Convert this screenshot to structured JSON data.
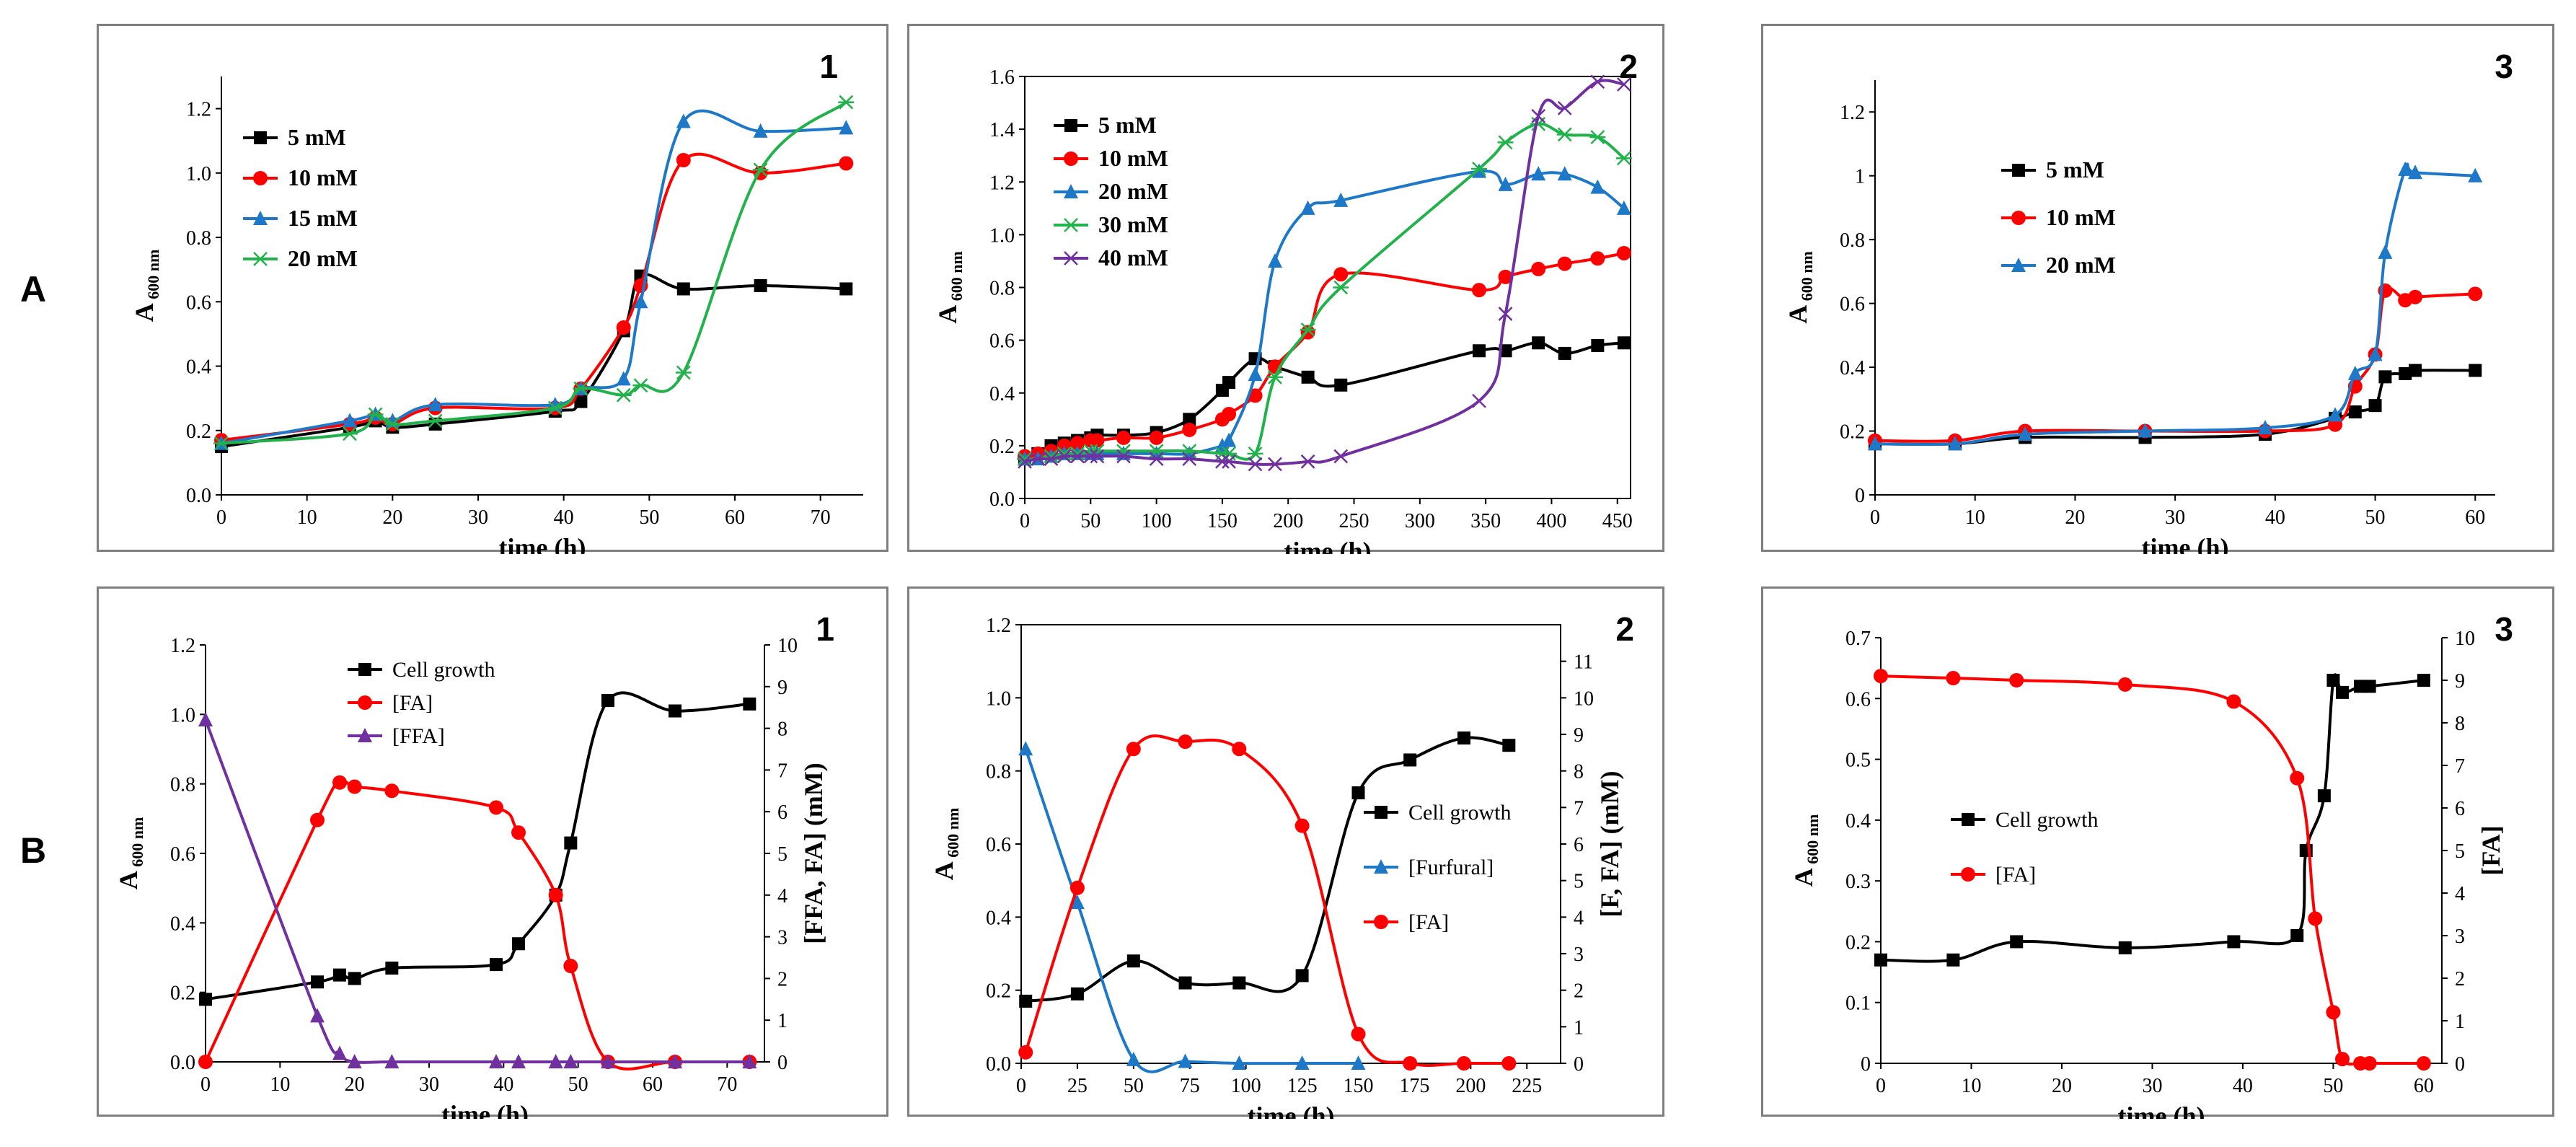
{
  "row_labels": [
    "A",
    "B"
  ],
  "chart_data": [
    {
      "id": "A1",
      "type": "line",
      "panel_number": "1",
      "xlabel": "time (h)",
      "ylabel": "A",
      "ylabel_sub": "600 nm",
      "xlim": [
        0,
        75
      ],
      "xticks": [
        0,
        10,
        20,
        30,
        40,
        50,
        60,
        70
      ],
      "ylim": [
        0,
        1.3
      ],
      "yticks": [
        0,
        0.2,
        0.4,
        0.6,
        0.8,
        1.0,
        1.2
      ],
      "ydec": 1,
      "legend": "top-left",
      "series": [
        {
          "name": "5 mM",
          "color": "#000000",
          "marker": "square",
          "x": [
            0,
            15,
            18,
            20,
            25,
            39,
            42,
            47,
            49,
            54,
            63,
            73
          ],
          "y": [
            0.15,
            0.21,
            0.23,
            0.21,
            0.22,
            0.26,
            0.29,
            0.51,
            0.68,
            0.64,
            0.65,
            0.64
          ]
        },
        {
          "name": "10 mM",
          "color": "#ff0000",
          "marker": "circle",
          "x": [
            0,
            15,
            18,
            20,
            25,
            39,
            42,
            47,
            49,
            54,
            63,
            73
          ],
          "y": [
            0.17,
            0.22,
            0.24,
            0.22,
            0.27,
            0.27,
            0.33,
            0.52,
            0.65,
            1.04,
            1.0,
            1.03
          ]
        },
        {
          "name": "15 mM",
          "color": "#1e78c8",
          "marker": "triangle",
          "x": [
            0,
            15,
            18,
            20,
            25,
            39,
            42,
            47,
            49,
            54,
            63,
            73
          ],
          "y": [
            0.16,
            0.23,
            0.25,
            0.23,
            0.28,
            0.28,
            0.33,
            0.36,
            0.6,
            1.16,
            1.13,
            1.14
          ]
        },
        {
          "name": "20 mM",
          "color": "#22b24c",
          "marker": "star",
          "x": [
            0,
            15,
            18,
            20,
            25,
            39,
            42,
            47,
            49,
            54,
            63,
            73
          ],
          "y": [
            0.16,
            0.19,
            0.25,
            0.22,
            0.23,
            0.27,
            0.33,
            0.31,
            0.34,
            0.38,
            1.01,
            1.22
          ]
        }
      ]
    },
    {
      "id": "A2",
      "type": "line",
      "panel_number": "2",
      "xlabel": "time (h)",
      "ylabel": "A",
      "ylabel_sub": "600 nm",
      "xlim": [
        0,
        460
      ],
      "xticks": [
        0,
        50,
        100,
        150,
        200,
        250,
        300,
        350,
        400,
        450
      ],
      "ylim": [
        0,
        1.6
      ],
      "yticks": [
        0,
        0.2,
        0.4,
        0.6,
        0.8,
        1.0,
        1.2,
        1.4,
        1.6
      ],
      "ydec": 1,
      "legend": "top-left",
      "series": [
        {
          "name": "5 mM",
          "color": "#000000",
          "marker": "square",
          "x": [
            0,
            10,
            20,
            30,
            40,
            50,
            55,
            75,
            100,
            125,
            150,
            155,
            175,
            190,
            215,
            240,
            345,
            365,
            390,
            410,
            435,
            455
          ],
          "y": [
            0.15,
            0.17,
            0.2,
            0.21,
            0.22,
            0.23,
            0.24,
            0.24,
            0.25,
            0.3,
            0.41,
            0.44,
            0.53,
            0.5,
            0.46,
            0.43,
            0.56,
            0.56,
            0.59,
            0.55,
            0.58,
            0.59
          ]
        },
        {
          "name": "10 mM",
          "color": "#ff0000",
          "marker": "circle",
          "x": [
            0,
            10,
            20,
            30,
            40,
            50,
            55,
            75,
            100,
            125,
            150,
            155,
            175,
            190,
            215,
            240,
            345,
            365,
            390,
            410,
            435,
            455
          ],
          "y": [
            0.16,
            0.17,
            0.18,
            0.2,
            0.21,
            0.22,
            0.22,
            0.23,
            0.23,
            0.26,
            0.3,
            0.32,
            0.39,
            0.5,
            0.63,
            0.85,
            0.79,
            0.84,
            0.87,
            0.89,
            0.91,
            0.93
          ]
        },
        {
          "name": "20 mM",
          "color": "#1e78c8",
          "marker": "triangle",
          "x": [
            0,
            10,
            20,
            30,
            40,
            50,
            55,
            75,
            100,
            125,
            150,
            155,
            175,
            190,
            215,
            240,
            345,
            365,
            390,
            410,
            435,
            455
          ],
          "y": [
            0.15,
            0.15,
            0.16,
            0.17,
            0.17,
            0.17,
            0.17,
            0.17,
            0.17,
            0.17,
            0.2,
            0.22,
            0.47,
            0.9,
            1.1,
            1.13,
            1.24,
            1.19,
            1.23,
            1.23,
            1.18,
            1.1
          ]
        },
        {
          "name": "30 mM",
          "color": "#22b24c",
          "marker": "star",
          "x": [
            0,
            10,
            20,
            30,
            40,
            50,
            55,
            75,
            100,
            125,
            150,
            155,
            175,
            190,
            215,
            240,
            345,
            365,
            390,
            410,
            435,
            455
          ],
          "y": [
            0.15,
            0.15,
            0.16,
            0.17,
            0.17,
            0.18,
            0.18,
            0.18,
            0.18,
            0.18,
            0.17,
            0.17,
            0.17,
            0.46,
            0.64,
            0.8,
            1.25,
            1.35,
            1.42,
            1.38,
            1.37,
            1.29
          ]
        },
        {
          "name": "40 mM",
          "color": "#7030a0",
          "marker": "x",
          "x": [
            0,
            10,
            20,
            30,
            40,
            50,
            55,
            75,
            100,
            125,
            150,
            155,
            175,
            190,
            215,
            240,
            345,
            365,
            390,
            410,
            435,
            455
          ],
          "y": [
            0.14,
            0.15,
            0.15,
            0.16,
            0.16,
            0.16,
            0.16,
            0.16,
            0.15,
            0.15,
            0.14,
            0.14,
            0.13,
            0.13,
            0.14,
            0.16,
            0.37,
            0.7,
            1.45,
            1.48,
            1.58,
            1.57
          ]
        }
      ]
    },
    {
      "id": "A3",
      "type": "line",
      "panel_number": "3",
      "xlabel": "time (h)",
      "ylabel": "A",
      "ylabel_sub": "600 nm",
      "xlim": [
        0,
        62
      ],
      "xticks": [
        0,
        10,
        20,
        30,
        40,
        50,
        60
      ],
      "ylim": [
        0,
        1.3
      ],
      "yticks": [
        0,
        0.2,
        0.4,
        0.6,
        0.8,
        1,
        1.2
      ],
      "ydec": -1,
      "legend": "center",
      "series": [
        {
          "name": "5 mM",
          "color": "#000000",
          "marker": "square",
          "x": [
            0,
            8,
            15,
            27,
            39,
            46,
            48,
            50,
            51,
            53,
            54,
            60
          ],
          "y": [
            0.16,
            0.16,
            0.18,
            0.18,
            0.19,
            0.24,
            0.26,
            0.28,
            0.37,
            0.38,
            0.39,
            0.39
          ]
        },
        {
          "name": "10 mM",
          "color": "#ff0000",
          "marker": "circle",
          "x": [
            0,
            8,
            15,
            27,
            39,
            46,
            48,
            50,
            51,
            53,
            54,
            60
          ],
          "y": [
            0.17,
            0.17,
            0.2,
            0.2,
            0.2,
            0.22,
            0.34,
            0.44,
            0.64,
            0.61,
            0.62,
            0.63
          ]
        },
        {
          "name": "20 mM",
          "color": "#1e78c8",
          "marker": "triangle",
          "x": [
            0,
            8,
            15,
            27,
            39,
            46,
            48,
            50,
            51,
            53,
            54,
            60
          ],
          "y": [
            0.16,
            0.16,
            0.19,
            0.2,
            0.21,
            0.25,
            0.38,
            0.44,
            0.76,
            1.02,
            1.01,
            1.0
          ]
        }
      ]
    },
    {
      "id": "B1",
      "type": "line",
      "panel_number": "1",
      "xlabel": "time (h)",
      "ylabel": "A",
      "ylabel_sub": "600 nm",
      "y2label": "[FFA, FA] (mM)",
      "xlim": [
        0,
        75
      ],
      "xticks": [
        0,
        10,
        20,
        30,
        40,
        50,
        60,
        70
      ],
      "ylim": [
        0,
        1.2
      ],
      "yticks": [
        0,
        0.2,
        0.4,
        0.6,
        0.8,
        1.0,
        1.2
      ],
      "ydec": 1,
      "y2lim": [
        0,
        10
      ],
      "y2ticks": [
        0,
        1,
        2,
        3,
        4,
        5,
        6,
        7,
        8,
        9,
        10
      ],
      "legend": "top-left",
      "series": [
        {
          "name": "Cell growth",
          "color": "#000000",
          "marker": "square",
          "axis": "left",
          "x": [
            0,
            15,
            18,
            20,
            25,
            39,
            42,
            47,
            49,
            54,
            63,
            73
          ],
          "y": [
            0.18,
            0.23,
            0.25,
            0.24,
            0.27,
            0.28,
            0.34,
            0.48,
            0.63,
            1.04,
            1.01,
            1.03
          ]
        },
        {
          "name": "[FA]",
          "color": "#ff0000",
          "marker": "circle",
          "axis": "right",
          "x": [
            0,
            15,
            18,
            20,
            25,
            39,
            42,
            47,
            49,
            54,
            63,
            73
          ],
          "y": [
            0,
            5.8,
            6.7,
            6.6,
            6.5,
            6.1,
            5.5,
            4.0,
            2.3,
            0,
            0,
            0
          ]
        },
        {
          "name": "[FFA]",
          "color": "#7030a0",
          "marker": "triangle",
          "axis": "right",
          "x": [
            0,
            15,
            18,
            20,
            25,
            39,
            42,
            47,
            49,
            54,
            63,
            73
          ],
          "y": [
            8.2,
            1.1,
            0.2,
            0,
            0,
            0,
            0,
            0,
            0,
            0,
            0,
            0
          ]
        }
      ]
    },
    {
      "id": "B2",
      "type": "line",
      "panel_number": "2",
      "xlabel": "time (h)",
      "ylabel": "A",
      "ylabel_sub": "600 nm",
      "y2label": "[F, FA] (mM)",
      "xlim": [
        0,
        240
      ],
      "xticks": [
        0,
        25,
        50,
        75,
        100,
        125,
        150,
        175,
        200,
        225
      ],
      "ylim": [
        0,
        1.2
      ],
      "yticks": [
        0,
        0.2,
        0.4,
        0.6,
        0.8,
        1.0,
        1.2
      ],
      "ydec": 1,
      "y2lim": [
        0,
        12
      ],
      "y2ticks": [
        0,
        1,
        2,
        3,
        4,
        5,
        6,
        7,
        8,
        9,
        10,
        11
      ],
      "legend": "right",
      "series": [
        {
          "name": "Cell growth",
          "color": "#000000",
          "marker": "square",
          "axis": "left",
          "x": [
            2,
            25,
            50,
            73,
            97,
            125,
            150,
            173,
            197,
            217
          ],
          "y": [
            0.17,
            0.19,
            0.28,
            0.22,
            0.22,
            0.24,
            0.74,
            0.83,
            0.89,
            0.87
          ]
        },
        {
          "name": "[Furfural]",
          "color": "#1e78c8",
          "marker": "triangle",
          "axis": "right",
          "x": [
            2,
            25,
            50,
            73,
            97,
            125,
            150
          ],
          "y": [
            8.6,
            4.4,
            0.1,
            0.05,
            0,
            0,
            0
          ]
        },
        {
          "name": "[FA]",
          "color": "#ff0000",
          "marker": "circle",
          "axis": "right",
          "x": [
            2,
            25,
            50,
            73,
            97,
            125,
            150,
            173,
            197,
            217
          ],
          "y": [
            0.3,
            4.8,
            8.6,
            8.8,
            8.6,
            6.5,
            0.8,
            0,
            0,
            0
          ]
        }
      ]
    },
    {
      "id": "B3",
      "type": "line",
      "panel_number": "3",
      "xlabel": "time (h)",
      "ylabel": "A",
      "ylabel_sub": "600 nm",
      "y2label": "[FA]",
      "xlim": [
        0,
        62
      ],
      "xticks": [
        0,
        10,
        20,
        30,
        40,
        50,
        60
      ],
      "ylim": [
        0,
        0.7
      ],
      "yticks": [
        0,
        0.1,
        0.2,
        0.3,
        0.4,
        0.5,
        0.6,
        0.7
      ],
      "ydec": -1,
      "y2lim": [
        0,
        10
      ],
      "y2ticks": [
        0,
        1,
        2,
        3,
        4,
        5,
        6,
        7,
        8,
        9,
        10
      ],
      "legend": "left-center",
      "series": [
        {
          "name": "Cell growth",
          "color": "#000000",
          "marker": "square",
          "axis": "left",
          "x": [
            0,
            8,
            15,
            27,
            39,
            46,
            47,
            49,
            50,
            51,
            53,
            54,
            60
          ],
          "y": [
            0.17,
            0.17,
            0.2,
            0.19,
            0.2,
            0.21,
            0.35,
            0.44,
            0.63,
            0.61,
            0.62,
            0.62,
            0.63
          ]
        },
        {
          "name": "[FA]",
          "color": "#ff0000",
          "marker": "circle",
          "axis": "right",
          "x": [
            0,
            8,
            15,
            27,
            39,
            46,
            48,
            50,
            51,
            53,
            54,
            60
          ],
          "y": [
            9.1,
            9.05,
            9.0,
            8.9,
            8.5,
            6.7,
            3.4,
            1.2,
            0.1,
            0,
            0,
            0
          ]
        }
      ]
    }
  ]
}
